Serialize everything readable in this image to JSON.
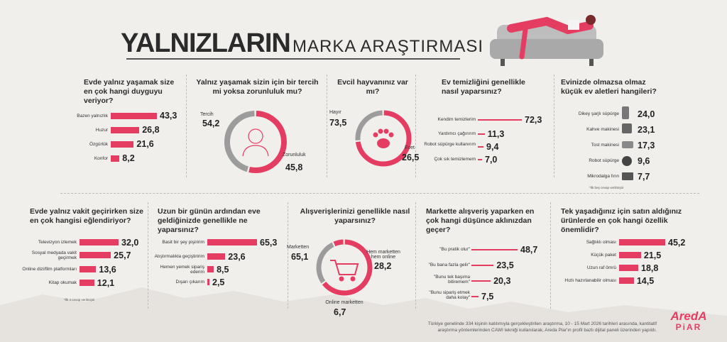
{
  "header": {
    "title_big": "YALNIZLARIN",
    "title_small": "MARKA ARAŞTIRMASI"
  },
  "colors": {
    "accent": "#e53d62",
    "ring_gray": "#9c9c9c",
    "dark": "#2b2b2b"
  },
  "q1": {
    "question": "Evde yalnız yaşamak size en çok hangi duyguyu veriyor?",
    "chart_data": {
      "type": "bar",
      "categories": [
        "Bazen yalnızlık",
        "Huzur",
        "Özgürlük",
        "Konfor"
      ],
      "values": [
        43.3,
        26.8,
        21.6,
        8.2
      ],
      "value_labels": [
        "43,3",
        "26,8",
        "21,6",
        "8,2"
      ]
    }
  },
  "q2": {
    "question": "Yalnız yaşamak sizin için bir tercih mi yoksa zorunluluk mu?",
    "chart_data": {
      "type": "pie",
      "categories": [
        "Tercih",
        "Zorunluluk"
      ],
      "values": [
        54.2,
        45.8
      ],
      "value_labels": [
        "54,2",
        "45,8"
      ]
    },
    "icon": "person-silhouette-icon"
  },
  "q3": {
    "question": "Evcil hayvanınız var mı?",
    "chart_data": {
      "type": "pie",
      "categories": [
        "Hayır",
        "Evet"
      ],
      "values": [
        73.5,
        26.5
      ],
      "value_labels": [
        "73,5",
        "26,5"
      ]
    },
    "icon": "paw-icon"
  },
  "q4": {
    "question": "Ev temizliğini genellikle nasıl yaparsınız?",
    "chart_data": {
      "type": "bar",
      "categories": [
        "Kendim temizlerim",
        "Yardımcı çağırırım",
        "Robot süpürge kullanırım",
        "Çok sık temizlemem"
      ],
      "values": [
        72.3,
        11.3,
        9.4,
        7.0
      ],
      "value_labels": [
        "72,3",
        "11,3",
        "9,4",
        "7,0"
      ]
    }
  },
  "q5": {
    "question": "Evinizde olmazsa olmaz küçük ev aletleri hangileri?",
    "chart_data": {
      "type": "bar",
      "categories": [
        "Dikey şarjlı süpürge",
        "Kahve makinesi",
        "Tost makinesi",
        "Robot süpürge",
        "Mikrodalga fırın"
      ],
      "values": [
        24.0,
        23.1,
        17.3,
        9.6,
        7.7
      ],
      "value_labels": [
        "24,0",
        "23,1",
        "17,3",
        "9,6",
        "7,7"
      ]
    },
    "note": "*İlk beş cevap verilmiştir"
  },
  "q6": {
    "question": "Evde yalnız vakit geçirirken size en çok hangisi eğlendiriyor?",
    "chart_data": {
      "type": "bar",
      "categories": [
        "Televizyon izlemek",
        "Sosyal medyada vakit geçirmek",
        "Online dizi/film platformları",
        "Kitap okumak"
      ],
      "values": [
        32.0,
        25.7,
        13.6,
        12.1
      ],
      "value_labels": [
        "32,0",
        "25,7",
        "13,6",
        "12,1"
      ]
    },
    "note": "*İlk 4 cevap verilmiştir"
  },
  "q7": {
    "question": "Uzun bir günün ardından eve geldiğinizde genellikle ne yaparsınız?",
    "chart_data": {
      "type": "bar",
      "categories": [
        "Basit bir şey pişiririm",
        "Atıştırmalıkla geçiştiririm",
        "Hemen yemek sipariş ederim",
        "Dışarı çıkarım"
      ],
      "values": [
        65.3,
        23.6,
        8.5,
        2.5
      ],
      "value_labels": [
        "65,3",
        "23,6",
        "8,5",
        "2,5"
      ]
    }
  },
  "q8": {
    "question": "Alışverişlerinizi genellikle nasıl yaparsınız?",
    "chart_data": {
      "type": "pie",
      "categories": [
        "Marketten",
        "Hem marketten hem online",
        "Online marketten"
      ],
      "values": [
        65.1,
        28.2,
        6.7
      ],
      "value_labels": [
        "65,1",
        "28,2",
        "6,7"
      ]
    },
    "icon": "shopping-cart-icon"
  },
  "q9": {
    "question": "Markette alışveriş yaparken en çok hangi düşünce aklınızdan geçer?",
    "chart_data": {
      "type": "bar",
      "categories": [
        "\"Bu pratik olur\"",
        "\"Bu bana fazla gelir\"",
        "\"Bunu tek başıma bitiremem\"",
        "\"Bunu sipariş etmek daha kolay\""
      ],
      "values": [
        48.7,
        23.5,
        20.3,
        7.5
      ],
      "value_labels": [
        "48,7",
        "23,5",
        "20,3",
        "7,5"
      ]
    }
  },
  "q10": {
    "question": "Tek yaşadığınız için satın aldığınız ürünlerde en çok hangi özellik önemlidir?",
    "chart_data": {
      "type": "bar",
      "categories": [
        "Sağlıklı olması",
        "Küçük paket",
        "Uzun raf ömrü",
        "Hızlı hazırlanabilir olması"
      ],
      "values": [
        45.2,
        21.5,
        18.8,
        14.5
      ],
      "value_labels": [
        "45,2",
        "21,5",
        "18,8",
        "14,5"
      ]
    }
  },
  "footer": {
    "line1": "Türkiye genelinde 334 kişinin katılımıyla gerçekleştirilen araştırma, 10 - 15 Mart 2026 tarihleri arasında, kantitatif",
    "line2": "araştırma yöntemlerinden CAWI tekniği kullanılarak, Areda Piar'ın profil bazlı dijital paneli üzerinden yapıldı."
  },
  "logo": {
    "line1": "AredA",
    "line2": "PiAR"
  }
}
